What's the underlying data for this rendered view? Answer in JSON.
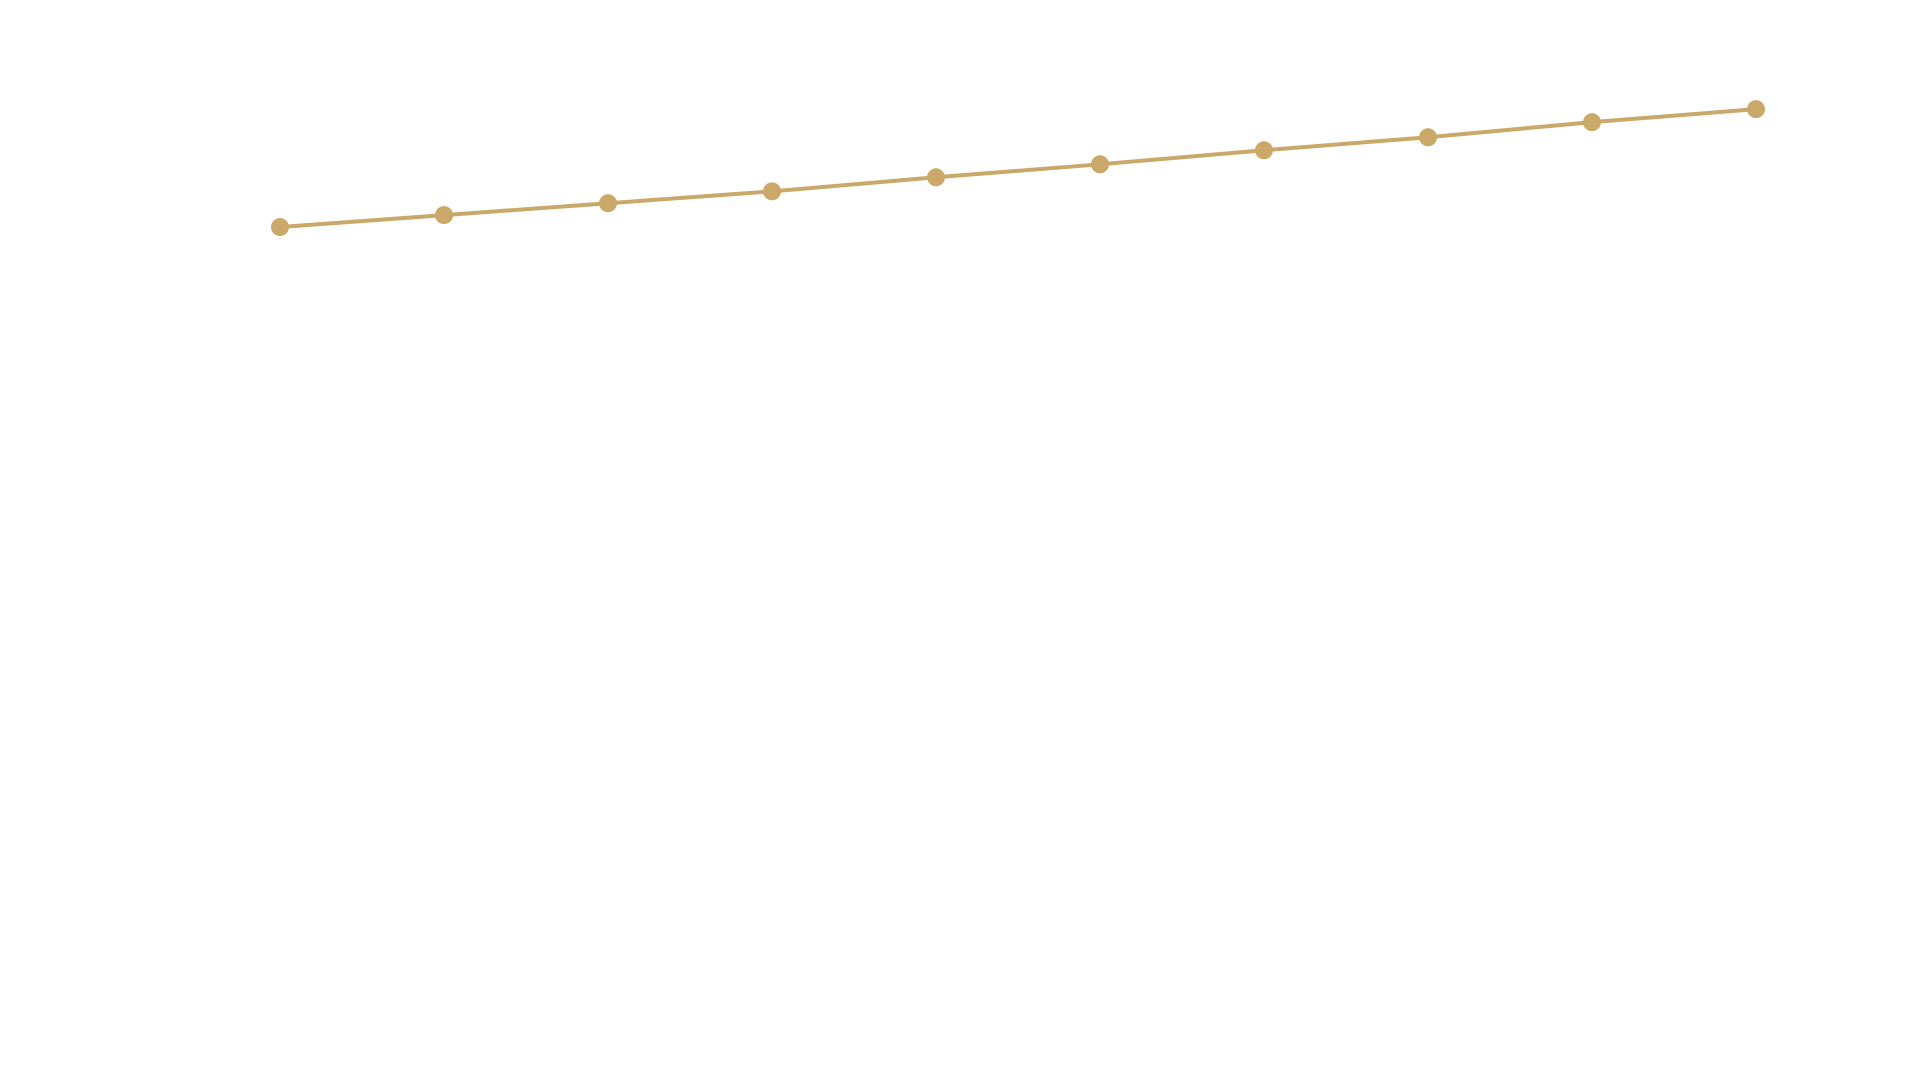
{
  "chart_data": {
    "type": "line",
    "categories": [
      null,
      null,
      null,
      null,
      null,
      null,
      null,
      null,
      null,
      null
    ],
    "values": [
      79.0,
      80.1,
      81.2,
      82.3,
      83.6,
      84.8,
      86.1,
      87.3,
      88.7,
      89.9
    ],
    "color": "#c9a86a",
    "ylim": [
      0,
      100
    ]
  }
}
